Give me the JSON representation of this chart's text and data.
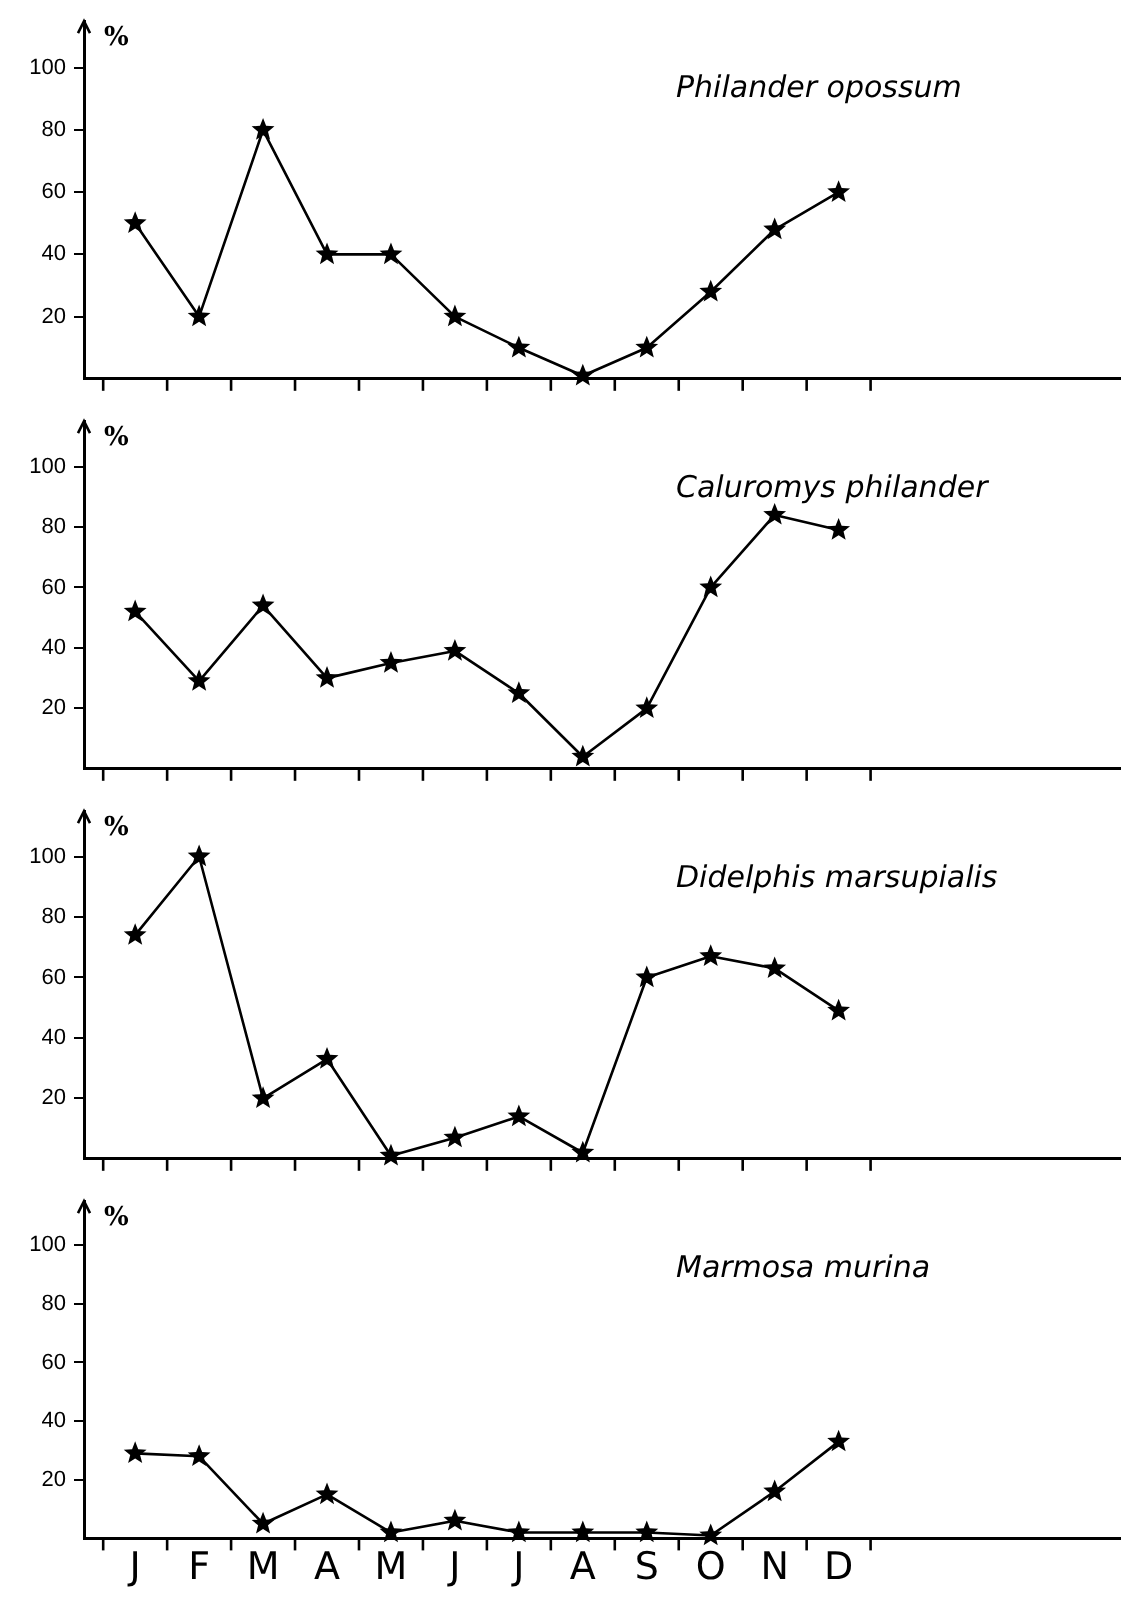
{
  "chart_data": [
    {
      "type": "line",
      "title": "Philander opossum",
      "ylabel": "%",
      "categories": [
        null,
        null,
        null,
        null,
        null,
        null,
        null,
        null,
        null,
        null,
        null,
        null
      ],
      "values": [
        50,
        20,
        80,
        40,
        40,
        20,
        10,
        1,
        10,
        28,
        48,
        60
      ],
      "color": "#000000",
      "ylim": [
        0,
        115
      ],
      "yticks": [
        20,
        40,
        60,
        80,
        100
      ],
      "marker": "star",
      "grid": false,
      "tick_labels": "y"
    },
    {
      "type": "line",
      "title": "Caluromys philander",
      "ylabel": "%",
      "categories": [
        null,
        null,
        null,
        null,
        null,
        null,
        null,
        null,
        null,
        null,
        null,
        null
      ],
      "values": [
        52,
        29,
        54,
        30,
        35,
        39,
        25,
        4,
        20,
        60,
        84,
        79
      ],
      "color": "#000000",
      "ylim": [
        0,
        115
      ],
      "yticks": [
        20,
        40,
        60,
        80,
        100
      ],
      "marker": "star",
      "grid": false,
      "tick_labels": "y"
    },
    {
      "type": "line",
      "title": "Didelphis marsupialis",
      "ylabel": "%",
      "categories": [
        null,
        null,
        null,
        null,
        null,
        null,
        null,
        null,
        null,
        null,
        null,
        null
      ],
      "values": [
        74,
        100,
        20,
        33,
        1,
        7,
        14,
        2,
        60,
        67,
        63,
        49
      ],
      "color": "#000000",
      "ylim": [
        0,
        115
      ],
      "yticks": [
        20,
        40,
        60,
        80,
        100
      ],
      "marker": "star",
      "grid": false,
      "tick_labels": "y"
    },
    {
      "type": "line",
      "title": "Marmosa murina",
      "ylabel": "%",
      "categories": [
        "J",
        "F",
        "M",
        "A",
        "M",
        "J",
        "J",
        "A",
        "S",
        "O",
        "N",
        "D"
      ],
      "values": [
        29,
        28,
        5,
        15,
        2,
        6,
        2,
        2,
        2,
        1,
        16,
        33
      ],
      "color": "#000000",
      "ylim": [
        0,
        115
      ],
      "yticks": [
        20,
        40,
        60,
        80,
        100
      ],
      "marker": "star",
      "grid": false
    }
  ]
}
